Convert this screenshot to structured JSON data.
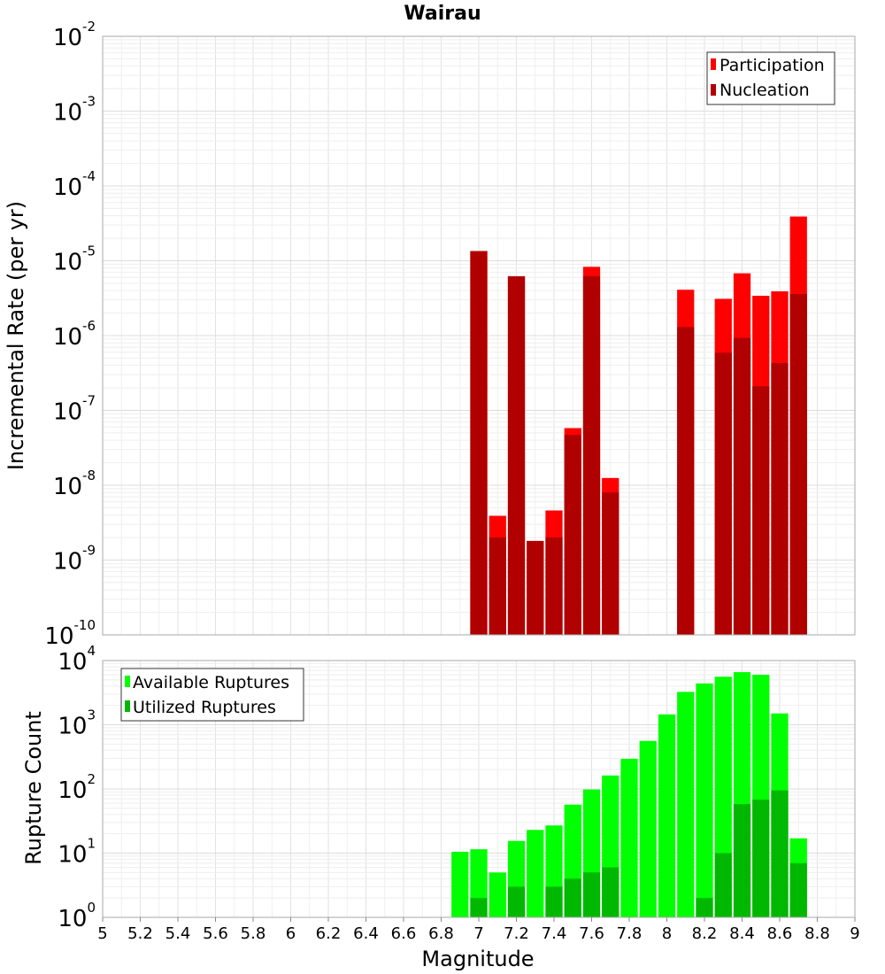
{
  "chart_data": [
    {
      "type": "bar",
      "title": "Wairau",
      "xlabel": "",
      "ylabel": "Incremental Rate (per yr)",
      "yscale": "log",
      "ylim": [
        1e-10,
        0.01
      ],
      "xlim": [
        5,
        9
      ],
      "bin_width": 0.1,
      "legend_position": "top-right",
      "x": [
        7.0,
        7.1,
        7.2,
        7.3,
        7.4,
        7.5,
        7.6,
        7.7,
        8.1,
        8.3,
        8.4,
        8.5,
        8.6,
        8.7
      ],
      "series": [
        {
          "name": "Participation",
          "color": "#ff0000",
          "values": [
            1.35e-05,
            3.9e-09,
            6.2e-06,
            1.8e-09,
            4.6e-09,
            5.8e-08,
            8.3e-06,
            1.25e-08,
            4.1e-06,
            3.1e-06,
            6.8e-06,
            3.4e-06,
            3.9e-06,
            3.9e-05
          ]
        },
        {
          "name": "Nucleation",
          "color": "#b00000",
          "values": [
            1.35e-05,
            2e-09,
            6.2e-06,
            1.8e-09,
            2e-09,
            4.7e-08,
            6.2e-06,
            8e-09,
            1.3e-06,
            5.9e-07,
            9.3e-07,
            2.1e-07,
            4.3e-07,
            3.6e-06
          ]
        }
      ]
    },
    {
      "type": "bar",
      "title": "",
      "xlabel": "Magnitude",
      "ylabel": "Rupture Count",
      "yscale": "log",
      "ylim": [
        1,
        10000
      ],
      "xlim": [
        5,
        9
      ],
      "bin_width": 0.1,
      "legend_position": "top-left",
      "x_ticks": [
        "5",
        "5.2",
        "5.4",
        "5.6",
        "5.8",
        "6",
        "6.2",
        "6.4",
        "6.6",
        "6.8",
        "7",
        "7.2",
        "7.4",
        "7.6",
        "7.8",
        "8",
        "8.2",
        "8.4",
        "8.6",
        "8.8",
        "9"
      ],
      "x": [
        6.9,
        7.0,
        7.1,
        7.2,
        7.3,
        7.4,
        7.5,
        7.6,
        7.7,
        7.8,
        7.9,
        8.0,
        8.1,
        8.2,
        8.3,
        8.4,
        8.5,
        8.6,
        8.7
      ],
      "series": [
        {
          "name": "Available Ruptures",
          "color": "#00ff00",
          "values": [
            10.5,
            11.5,
            5,
            15.5,
            23,
            27,
            57,
            98,
            162,
            295,
            560,
            1450,
            3250,
            4400,
            5600,
            6600,
            6000,
            1500,
            17
          ]
        },
        {
          "name": "Utilized Ruptures",
          "color": "#00b800",
          "values": [
            0,
            2,
            1,
            3,
            1,
            3,
            4,
            5,
            6,
            1,
            1,
            0,
            1,
            2,
            10,
            58,
            68,
            95,
            7
          ]
        }
      ]
    }
  ]
}
